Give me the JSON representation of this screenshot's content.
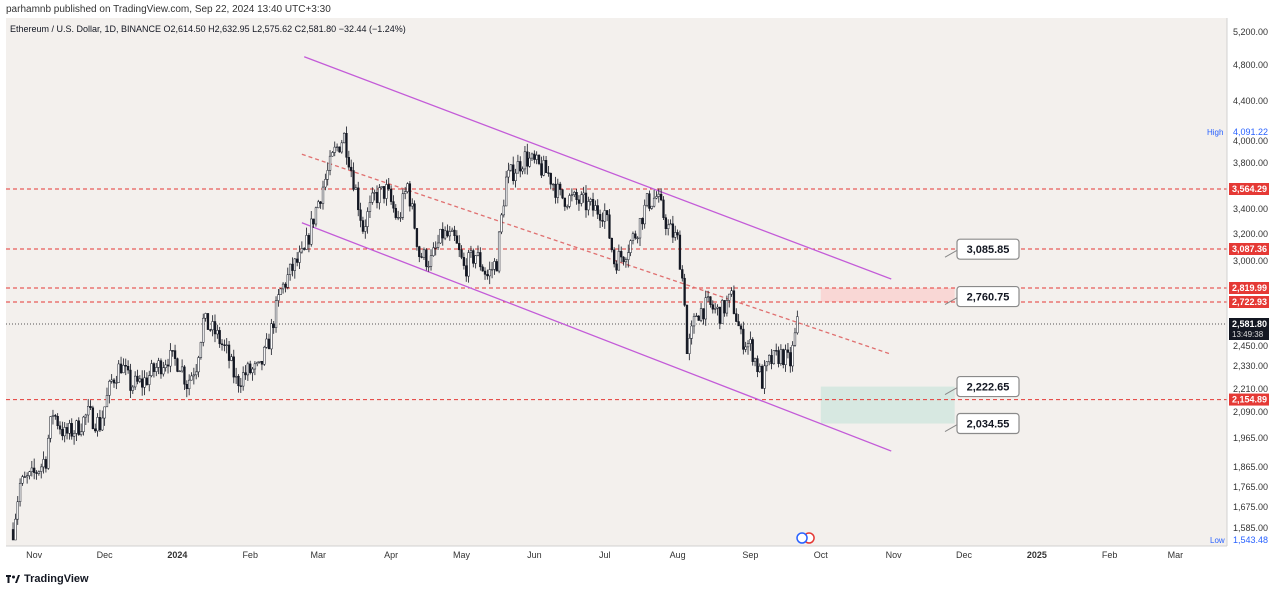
{
  "header": {
    "published": "parhamnb published on TradingView.com, Sep 22, 2024 13:40 UTC+3:30"
  },
  "legend": {
    "symbol": "Ethereum / U.S. Dollar, 1D, BINANCE",
    "ohlc": "O2,614.50 H2,632.95 L2,575.62 C2,581.80 −32.44 (−1.24%)"
  },
  "footer": {
    "brand": "TradingView"
  },
  "colors": {
    "background": "#f3f0ed",
    "candle": "#131722",
    "channel": "#c35bd8",
    "midline": "#e07070",
    "level": "#e53935",
    "resistance_zone": "#f9d4d2",
    "support_zone": "#d4e7df"
  },
  "chart_data": {
    "type": "candlestick",
    "symbol": "ETHUSD",
    "timeframe": "1D",
    "exchange": "BINANCE",
    "x_axis_labels": [
      "Nov",
      "Dec",
      "2024",
      "Feb",
      "Mar",
      "Apr",
      "May",
      "Jun",
      "Jul",
      "Aug",
      "Sep",
      "Oct",
      "Nov",
      "Dec",
      "2025",
      "Feb",
      "Mar"
    ],
    "y_axis_ticks": [
      {
        "label": "5,200.00",
        "v": 5200
      },
      {
        "label": "4,800.00",
        "v": 4800
      },
      {
        "label": "4,400.00",
        "v": 4400
      },
      {
        "label": "4,000.00",
        "v": 4000
      },
      {
        "label": "3,800.00",
        "v": 3800
      },
      {
        "label": "3,400.00",
        "v": 3400
      },
      {
        "label": "3,200.00",
        "v": 3200
      },
      {
        "label": "3,000.00",
        "v": 3000
      },
      {
        "label": "2,450.00",
        "v": 2450
      },
      {
        "label": "2,330.00",
        "v": 2330
      },
      {
        "label": "2,210.00",
        "v": 2210
      },
      {
        "label": "2,090.00",
        "v": 2090
      },
      {
        "label": "1,965.00",
        "v": 1965
      },
      {
        "label": "1,865.00",
        "v": 1865
      },
      {
        "label": "1,765.00",
        "v": 1765
      },
      {
        "label": "1,675.00",
        "v": 1675
      },
      {
        "label": "1,585.00",
        "v": 1585
      }
    ],
    "high": {
      "label": "High",
      "value": "4,091.22",
      "v": 4091.22
    },
    "low": {
      "label": "Low",
      "value": "1,543.48",
      "v": 1543.48
    },
    "last_price": {
      "value": "2,581.80",
      "countdown": "13:49:38",
      "v": 2581.8
    },
    "levels": [
      {
        "value": "3,564.29",
        "v": 3564.29
      },
      {
        "value": "3,087.36",
        "v": 3087.36
      },
      {
        "value": "2,819.99",
        "v": 2819.99
      },
      {
        "value": "2,722.93",
        "v": 2722.93
      },
      {
        "value": "2,154.89",
        "v": 2154.89
      }
    ],
    "callouts": [
      {
        "value": "3,085.85",
        "v": 3085.85
      },
      {
        "value": "2,760.75",
        "v": 2760.75
      },
      {
        "value": "2,222.65",
        "v": 2222.65
      },
      {
        "value": "2,034.55",
        "v": 2034.55
      }
    ],
    "zones": [
      {
        "type": "resistance",
        "top": 2819.99,
        "bottom": 2722.93
      },
      {
        "type": "support",
        "top": 2222.65,
        "bottom": 2034.55
      }
    ],
    "channel": {
      "upper": [
        {
          "date": "2024-02-24",
          "v": 4900
        },
        {
          "date": "2024-10-31",
          "v": 2880
        }
      ],
      "lower": [
        {
          "date": "2024-02-23",
          "v": 3290
        },
        {
          "date": "2024-10-31",
          "v": 1920
        }
      ],
      "mid": [
        {
          "date": "2024-02-23",
          "v": 3880
        },
        {
          "date": "2024-10-31",
          "v": 2400
        }
      ]
    },
    "price_path": [
      [
        "2023-10-23",
        1580
      ],
      [
        "2023-10-26",
        1780
      ],
      [
        "2023-11-01",
        1830
      ],
      [
        "2023-11-06",
        1900
      ],
      [
        "2023-11-09",
        2090
      ],
      [
        "2023-11-14",
        1980
      ],
      [
        "2023-11-19",
        2010
      ],
      [
        "2023-11-24",
        2080
      ],
      [
        "2023-11-29",
        2030
      ],
      [
        "2023-12-04",
        2250
      ],
      [
        "2023-12-08",
        2340
      ],
      [
        "2023-12-12",
        2230
      ],
      [
        "2023-12-17",
        2240
      ],
      [
        "2023-12-23",
        2320
      ],
      [
        "2023-12-28",
        2380
      ],
      [
        "2024-01-02",
        2350
      ],
      [
        "2024-01-05",
        2240
      ],
      [
        "2024-01-09",
        2340
      ],
      [
        "2024-01-12",
        2600
      ],
      [
        "2024-01-17",
        2530
      ],
      [
        "2024-01-22",
        2410
      ],
      [
        "2024-01-26",
        2250
      ],
      [
        "2024-01-31",
        2300
      ],
      [
        "2024-02-05",
        2310
      ],
      [
        "2024-02-09",
        2480
      ],
      [
        "2024-02-14",
        2800
      ],
      [
        "2024-02-19",
        2950
      ],
      [
        "2024-02-24",
        3050
      ],
      [
        "2024-02-29",
        3400
      ],
      [
        "2024-03-04",
        3650
      ],
      [
        "2024-03-08",
        3900
      ],
      [
        "2024-03-12",
        4050
      ],
      [
        "2024-03-16",
        3650
      ],
      [
        "2024-03-20",
        3250
      ],
      [
        "2024-03-25",
        3500
      ],
      [
        "2024-03-30",
        3550
      ],
      [
        "2024-04-04",
        3300
      ],
      [
        "2024-04-08",
        3600
      ],
      [
        "2024-04-13",
        3050
      ],
      [
        "2024-04-18",
        3000
      ],
      [
        "2024-04-23",
        3200
      ],
      [
        "2024-04-28",
        3150
      ],
      [
        "2024-05-02",
        2950
      ],
      [
        "2024-05-07",
        3050
      ],
      [
        "2024-05-12",
        2900
      ],
      [
        "2024-05-16",
        3000
      ],
      [
        "2024-05-20",
        3650
      ],
      [
        "2024-05-24",
        3750
      ],
      [
        "2024-05-28",
        3850
      ],
      [
        "2024-06-02",
        3780
      ],
      [
        "2024-06-07",
        3700
      ],
      [
        "2024-06-12",
        3500
      ],
      [
        "2024-06-17",
        3480
      ],
      [
        "2024-06-22",
        3450
      ],
      [
        "2024-06-26",
        3400
      ],
      [
        "2024-07-01",
        3380
      ],
      [
        "2024-07-05",
        3000
      ],
      [
        "2024-07-09",
        3050
      ],
      [
        "2024-07-14",
        3200
      ],
      [
        "2024-07-19",
        3450
      ],
      [
        "2024-07-23",
        3500
      ],
      [
        "2024-07-28",
        3250
      ],
      [
        "2024-08-01",
        3150
      ],
      [
        "2024-08-04",
        2750
      ],
      [
        "2024-08-05",
        2400
      ],
      [
        "2024-08-09",
        2650
      ],
      [
        "2024-08-14",
        2700
      ],
      [
        "2024-08-19",
        2650
      ],
      [
        "2024-08-24",
        2750
      ],
      [
        "2024-08-28",
        2500
      ],
      [
        "2024-09-01",
        2450
      ],
      [
        "2024-09-06",
        2250
      ],
      [
        "2024-09-09",
        2350
      ],
      [
        "2024-09-14",
        2400
      ],
      [
        "2024-09-18",
        2350
      ],
      [
        "2024-09-21",
        2580
      ]
    ]
  }
}
